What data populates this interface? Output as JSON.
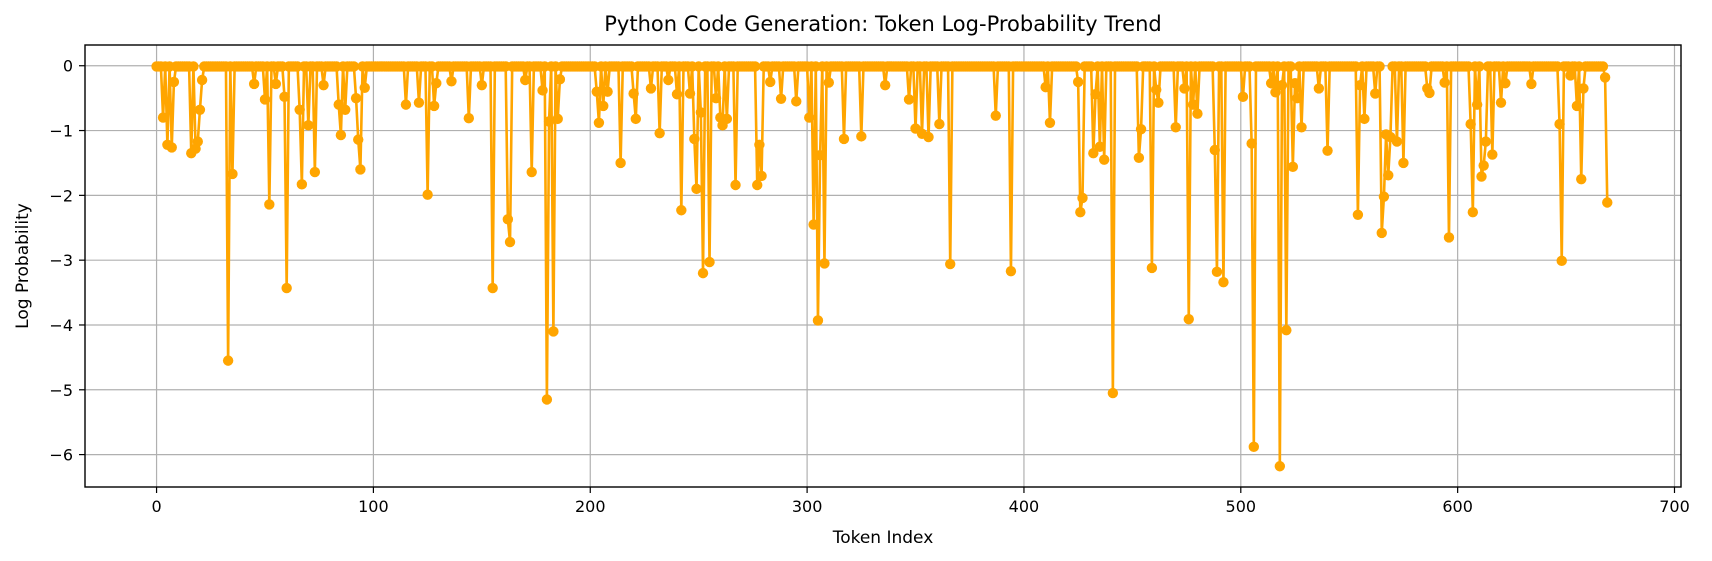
{
  "chart_data": {
    "type": "line",
    "title": "Python Code Generation: Token Log-Probability Trend",
    "xlabel": "Token Index",
    "ylabel": "Log Probability",
    "xlim": [
      -33,
      703
    ],
    "ylim": [
      -6.5,
      0.32
    ],
    "xticks": [
      0,
      100,
      200,
      300,
      400,
      500,
      600,
      700
    ],
    "yticks": [
      0,
      -1,
      -2,
      -3,
      -4,
      -5,
      -6
    ],
    "xtick_labels": [
      "0",
      "100",
      "200",
      "300",
      "400",
      "500",
      "600",
      "700"
    ],
    "ytick_labels": [
      "0",
      "−1",
      "−2",
      "−3",
      "−4",
      "−5",
      "−6"
    ],
    "grid": true,
    "legend": "none",
    "n_points": 670,
    "baseline_value": -0.01,
    "series": [
      {
        "color": "#ffa500",
        "marker": "circle",
        "points": [
          [
            3,
            -0.8
          ],
          [
            5,
            -1.22
          ],
          [
            7,
            -1.26
          ],
          [
            8,
            -0.25
          ],
          [
            16,
            -1.35
          ],
          [
            18,
            -1.28
          ],
          [
            19,
            -1.17
          ],
          [
            20,
            -0.68
          ],
          [
            21,
            -0.22
          ],
          [
            33,
            -4.55
          ],
          [
            35,
            -1.67
          ],
          [
            45,
            -0.28
          ],
          [
            50,
            -0.52
          ],
          [
            52,
            -2.14
          ],
          [
            55,
            -0.28
          ],
          [
            59,
            -0.48
          ],
          [
            60,
            -3.43
          ],
          [
            66,
            -0.68
          ],
          [
            67,
            -1.83
          ],
          [
            70,
            -0.92
          ],
          [
            73,
            -1.64
          ],
          [
            77,
            -0.3
          ],
          [
            84,
            -0.6
          ],
          [
            85,
            -1.07
          ],
          [
            87,
            -0.68
          ],
          [
            92,
            -0.5
          ],
          [
            93,
            -1.14
          ],
          [
            94,
            -1.6
          ],
          [
            96,
            -0.34
          ],
          [
            115,
            -0.6
          ],
          [
            121,
            -0.57
          ],
          [
            125,
            -1.99
          ],
          [
            128,
            -0.62
          ],
          [
            129,
            -0.27
          ],
          [
            136,
            -0.24
          ],
          [
            144,
            -0.81
          ],
          [
            150,
            -0.3
          ],
          [
            155,
            -3.43
          ],
          [
            162,
            -2.37
          ],
          [
            163,
            -2.72
          ],
          [
            170,
            -0.22
          ],
          [
            173,
            -1.64
          ],
          [
            178,
            -0.38
          ],
          [
            180,
            -5.15
          ],
          [
            181,
            -0.86
          ],
          [
            183,
            -4.1
          ],
          [
            185,
            -0.82
          ],
          [
            186,
            -0.21
          ],
          [
            203,
            -0.4
          ],
          [
            204,
            -0.88
          ],
          [
            206,
            -0.62
          ],
          [
            208,
            -0.4
          ],
          [
            214,
            -1.5
          ],
          [
            220,
            -0.43
          ],
          [
            221,
            -0.82
          ],
          [
            228,
            -0.35
          ],
          [
            232,
            -1.04
          ],
          [
            236,
            -0.22
          ],
          [
            240,
            -0.44
          ],
          [
            242,
            -2.23
          ],
          [
            246,
            -0.43
          ],
          [
            248,
            -1.13
          ],
          [
            249,
            -1.9
          ],
          [
            251,
            -0.72
          ],
          [
            252,
            -3.2
          ],
          [
            255,
            -3.03
          ],
          [
            258,
            -0.5
          ],
          [
            260,
            -0.8
          ],
          [
            261,
            -0.92
          ],
          [
            263,
            -0.82
          ],
          [
            267,
            -1.84
          ],
          [
            277,
            -1.84
          ],
          [
            278,
            -1.22
          ],
          [
            279,
            -1.7
          ],
          [
            283,
            -0.25
          ],
          [
            288,
            -0.51
          ],
          [
            295,
            -0.55
          ],
          [
            301,
            -0.8
          ],
          [
            303,
            -2.45
          ],
          [
            305,
            -3.93
          ],
          [
            306,
            -1.38
          ],
          [
            308,
            -3.05
          ],
          [
            310,
            -0.26
          ],
          [
            317,
            -1.13
          ],
          [
            325,
            -1.09
          ],
          [
            336,
            -0.3
          ],
          [
            347,
            -0.52
          ],
          [
            350,
            -0.97
          ],
          [
            353,
            -1.05
          ],
          [
            356,
            -1.1
          ],
          [
            361,
            -0.9
          ],
          [
            366,
            -3.06
          ],
          [
            387,
            -0.77
          ],
          [
            394,
            -3.17
          ],
          [
            410,
            -0.33
          ],
          [
            412,
            -0.88
          ],
          [
            425,
            -0.25
          ],
          [
            426,
            -2.26
          ],
          [
            427,
            -2.04
          ],
          [
            432,
            -1.35
          ],
          [
            433,
            -0.44
          ],
          [
            435,
            -1.25
          ],
          [
            437,
            -1.45
          ],
          [
            441,
            -5.05
          ],
          [
            453,
            -1.42
          ],
          [
            454,
            -0.98
          ],
          [
            459,
            -3.12
          ],
          [
            461,
            -0.37
          ],
          [
            462,
            -0.57
          ],
          [
            470,
            -0.95
          ],
          [
            474,
            -0.35
          ],
          [
            476,
            -3.91
          ],
          [
            478,
            -0.6
          ],
          [
            480,
            -0.74
          ],
          [
            488,
            -1.3
          ],
          [
            489,
            -3.18
          ],
          [
            492,
            -3.34
          ],
          [
            501,
            -0.48
          ],
          [
            505,
            -1.2
          ],
          [
            506,
            -5.88
          ],
          [
            514,
            -0.27
          ],
          [
            516,
            -0.41
          ],
          [
            518,
            -6.18
          ],
          [
            519,
            -0.3
          ],
          [
            521,
            -4.08
          ],
          [
            524,
            -1.56
          ],
          [
            525,
            -0.27
          ],
          [
            526,
            -0.5
          ],
          [
            528,
            -0.95
          ],
          [
            536,
            -0.35
          ],
          [
            540,
            -1.31
          ],
          [
            554,
            -2.3
          ],
          [
            555,
            -0.3
          ],
          [
            557,
            -0.82
          ],
          [
            562,
            -0.43
          ],
          [
            565,
            -2.58
          ],
          [
            566,
            -2.02
          ],
          [
            567,
            -1.06
          ],
          [
            568,
            -1.69
          ],
          [
            569,
            -1.1
          ],
          [
            572,
            -1.17
          ],
          [
            575,
            -1.5
          ],
          [
            586,
            -0.35
          ],
          [
            587,
            -0.42
          ],
          [
            594,
            -0.26
          ],
          [
            596,
            -2.65
          ],
          [
            606,
            -0.9
          ],
          [
            607,
            -2.26
          ],
          [
            609,
            -0.6
          ],
          [
            611,
            -1.71
          ],
          [
            612,
            -1.54
          ],
          [
            613,
            -1.17
          ],
          [
            616,
            -1.37
          ],
          [
            620,
            -0.57
          ],
          [
            622,
            -0.27
          ],
          [
            634,
            -0.28
          ],
          [
            647,
            -0.9
          ],
          [
            648,
            -3.01
          ],
          [
            652,
            -0.15
          ],
          [
            655,
            -0.62
          ],
          [
            657,
            -1.75
          ],
          [
            658,
            -0.35
          ],
          [
            668,
            -0.18
          ],
          [
            669,
            -2.11
          ]
        ]
      }
    ]
  }
}
